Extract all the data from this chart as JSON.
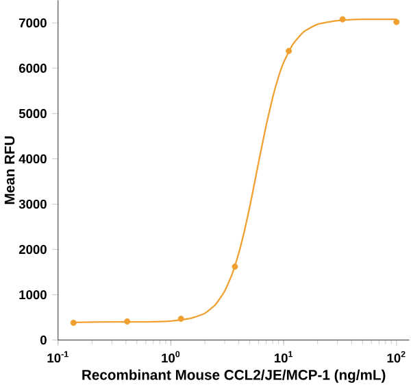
{
  "chart_data": {
    "type": "line",
    "xlabel": "Recombinant Mouse CCL2/JE/MCP-1 (ng/mL)",
    "ylabel": "Mean RFU",
    "log": "x",
    "xlim": [
      0.1,
      130
    ],
    "ylim": [
      0,
      7500
    ],
    "xticks": [
      {
        "value": 0.1,
        "label": "10$^{-1}$"
      },
      {
        "value": 1,
        "label": "10$^{0}$"
      },
      {
        "value": 10,
        "label": "10$^{1}$"
      },
      {
        "value": 100,
        "label": "10$^{2}$"
      }
    ],
    "yticks": [
      0,
      1000,
      2000,
      3000,
      4000,
      5000,
      6000,
      7000
    ],
    "series": [
      {
        "type": "scatter",
        "marker": "circle",
        "color": "#f0a030",
        "x": [
          0.137,
          0.41,
          1.23,
          3.7,
          11.1,
          33.3,
          100
        ],
        "values": [
          380,
          410,
          470,
          1620,
          6380,
          7080,
          7020
        ]
      },
      {
        "marker": "none",
        "line_style": "solid",
        "color": "#f0a030",
        "x": [
          0.137,
          0.3,
          0.6,
          1,
          1.5,
          2,
          2.5,
          3,
          3.5,
          4,
          4.5,
          5,
          5.5,
          6,
          7,
          8,
          9,
          10,
          12,
          15,
          20,
          30,
          50,
          100
        ],
        "values": [
          390,
          400,
          400,
          420,
          480,
          590,
          790,
          1080,
          1460,
          1920,
          2420,
          2940,
          3450,
          3930,
          4740,
          5360,
          5810,
          6130,
          6520,
          6800,
          6970,
          7050,
          7080,
          7080
        ]
      }
    ]
  }
}
